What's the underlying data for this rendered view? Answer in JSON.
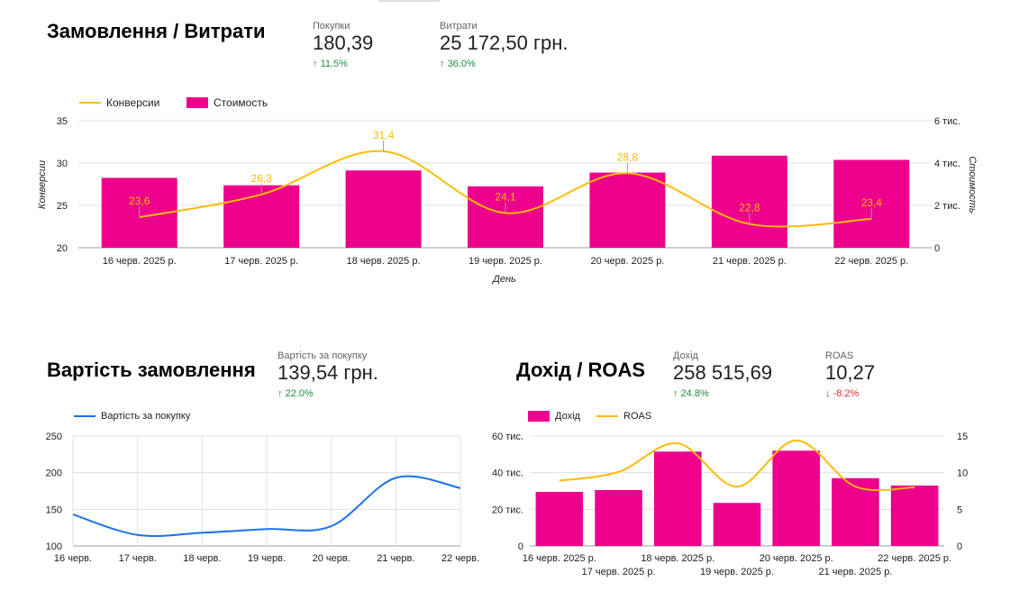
{
  "top_section": {
    "title": "Замовлення / Витрати",
    "kpis": [
      {
        "label": "Покупки",
        "value": "180,39",
        "delta": "11.5%",
        "direction": "up"
      },
      {
        "label": "Витрати",
        "value": "25 172,50 грн.",
        "delta": "36.0%",
        "direction": "up"
      }
    ]
  },
  "order_value_section": {
    "title": "Вартість замовлення",
    "kpi": {
      "label": "Вартість за покупку",
      "value": "139,54 грн.",
      "delta": "22.0%",
      "direction": "up"
    }
  },
  "revenue_section": {
    "title": "Дохід / ROAS",
    "kpis": [
      {
        "label": "Дохід",
        "value": "258 515,69",
        "delta": "24.8%",
        "direction": "up"
      },
      {
        "label": "ROAS",
        "value": "10,27",
        "delta": "-8.2%",
        "direction": "down"
      }
    ]
  },
  "colors": {
    "bar": "#ec008c",
    "line_orange": "#fbbc04",
    "line_blue": "#1a73e8",
    "grid": "#e0e0e0",
    "up": "#1e8e3e",
    "down": "#d93025"
  },
  "icons": {
    "up": "arrow-up-icon",
    "down": "arrow-down-icon"
  },
  "chart_data": [
    {
      "type": "bar",
      "categories": [
        "16 черв. 2025 р.",
        "17 черв. 2025 р.",
        "18 черв. 2025 р.",
        "19 черв. 2025 р.",
        "20 черв. 2025 р.",
        "21 черв. 2025 р.",
        "22 черв. 2025 р."
      ],
      "series": [
        {
          "name": "Конверсии",
          "type": "line",
          "axis": "left",
          "values": [
            23.6,
            26.3,
            31.4,
            24.1,
            28.8,
            22.8,
            23.4
          ],
          "labels": [
            "23,6",
            "26,3",
            "31,4",
            "24,1",
            "28,8",
            "22,8",
            "23,4"
          ]
        },
        {
          "name": "Стоимость",
          "type": "bar",
          "axis": "right",
          "values": [
            3300,
            2950,
            3650,
            2900,
            3550,
            4350,
            4150
          ]
        }
      ],
      "xlabel": "День",
      "ylabel": "Конверсии",
      "y2label": "Стоимость",
      "ylim": [
        20,
        35
      ],
      "y2lim": [
        0,
        6000
      ],
      "yticks": [
        "20",
        "25",
        "30",
        "35"
      ],
      "y2ticks": [
        "0",
        "2 тис.",
        "4 тис.",
        "6 тис."
      ],
      "legend": "top-left",
      "grid": true
    },
    {
      "type": "line",
      "categories": [
        "16 черв.",
        "17 черв.",
        "18 черв.",
        "19 черв.",
        "20 черв.",
        "21 черв.",
        "22 черв."
      ],
      "series": [
        {
          "name": "Вартість за покупку",
          "values": [
            143,
            115,
            118,
            123,
            127,
            193,
            179
          ]
        }
      ],
      "ylim": [
        100,
        250
      ],
      "yticks": [
        "100",
        "150",
        "200",
        "250"
      ],
      "legend": "top-left",
      "grid": true
    },
    {
      "type": "bar",
      "categories": [
        "16 черв. 2025 р.",
        "17 черв. 2025 р.",
        "18 черв. 2025 р.",
        "19 черв. 2025 р.",
        "20 черв. 2025 р.",
        "21 черв. 2025 р.",
        "22 черв. 2025 р."
      ],
      "series": [
        {
          "name": "Дохід",
          "type": "bar",
          "axis": "left",
          "values": [
            29500,
            30500,
            51500,
            23500,
            52000,
            37000,
            33000
          ]
        },
        {
          "name": "ROAS",
          "type": "line",
          "axis": "right",
          "values": [
            8.9,
            10.1,
            14.0,
            8.1,
            14.4,
            8.1,
            8.0
          ]
        }
      ],
      "ylim": [
        0,
        60000
      ],
      "y2lim": [
        0,
        15
      ],
      "yticks": [
        "0",
        "20 тис.",
        "40 тис.",
        "60 тис."
      ],
      "y2ticks": [
        "0",
        "5",
        "10",
        "15"
      ],
      "legend": "top-left",
      "grid": true
    }
  ]
}
